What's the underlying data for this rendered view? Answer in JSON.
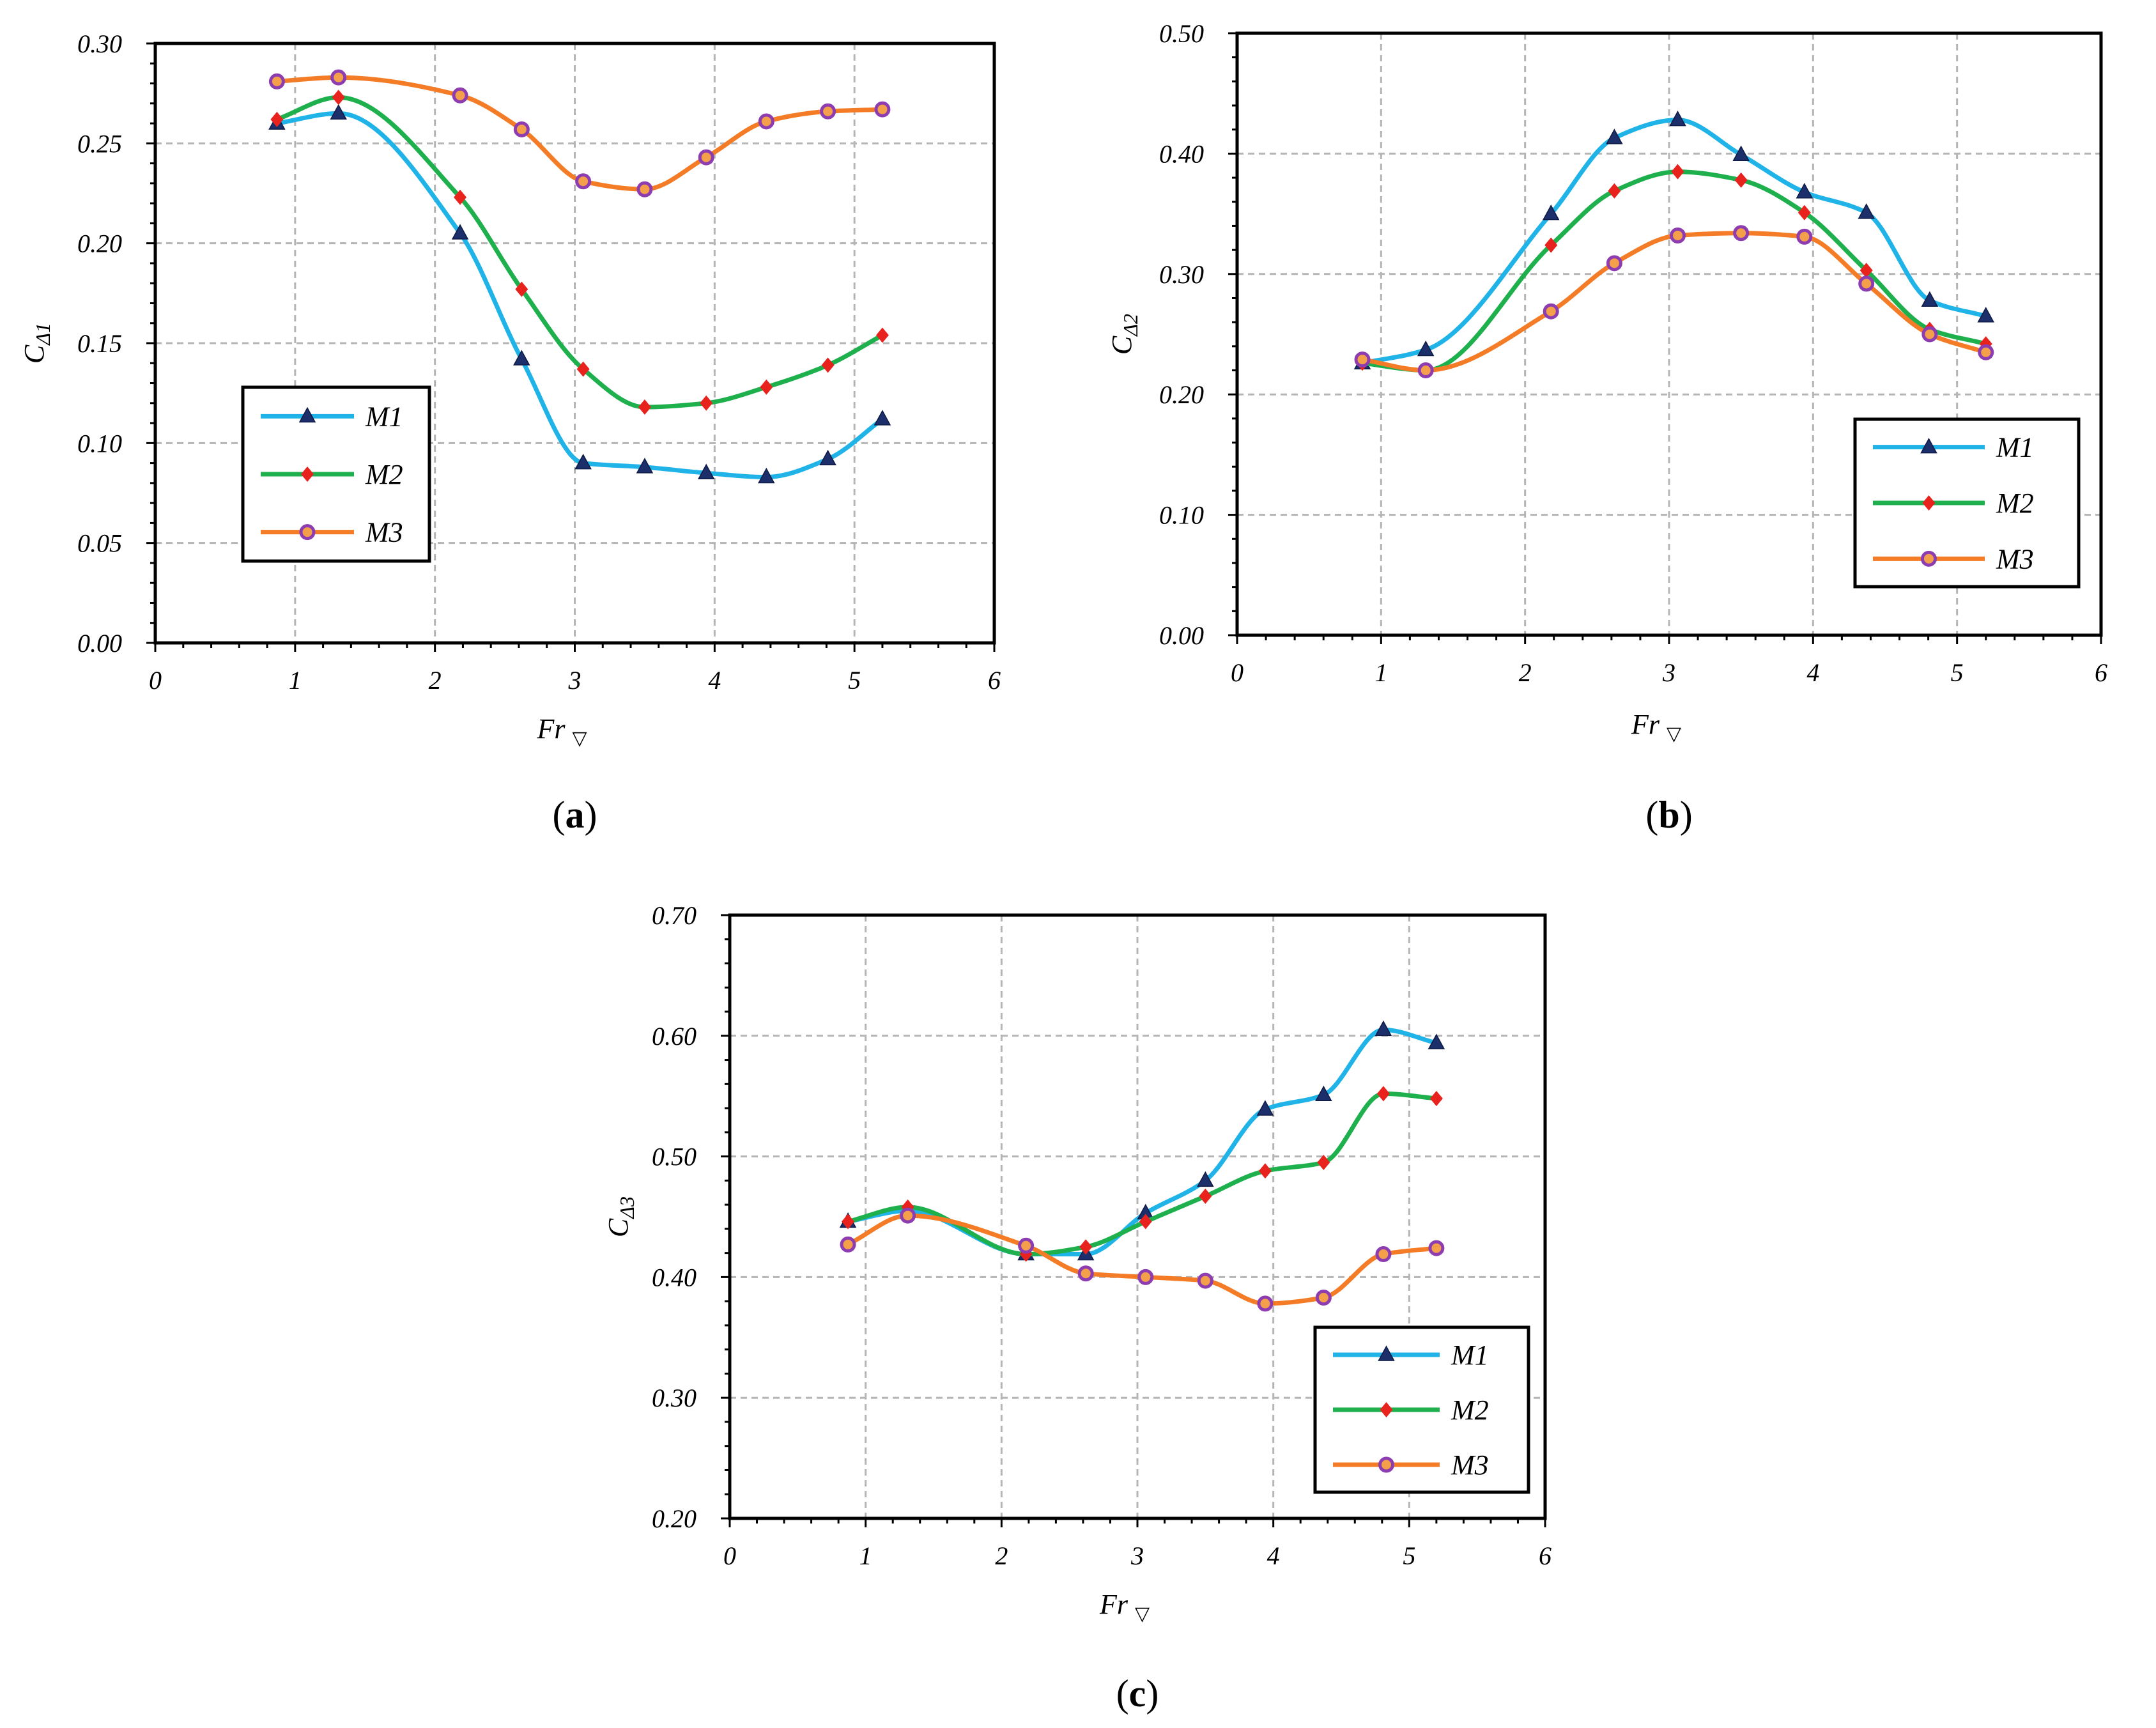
{
  "chart_data": [
    {
      "type": "line",
      "caption": {
        "open": "(",
        "letter": "a",
        "close": ")"
      },
      "ylabel": {
        "main": "C",
        "sub": "Δ1"
      },
      "xlabel": {
        "main": "Fr",
        "sub": "▽"
      },
      "xlim": [
        0,
        6
      ],
      "ylim": [
        0,
        0.3
      ],
      "xticks": [
        "0",
        "1",
        "2",
        "3",
        "4",
        "5",
        "6"
      ],
      "yticks": [
        "0.00",
        "0.05",
        "0.10",
        "0.15",
        "0.20",
        "0.25",
        "0.30"
      ],
      "legend_position": "bottom-left",
      "x": [
        0.87,
        1.31,
        2.18,
        2.62,
        3.06,
        3.5,
        3.94,
        4.37,
        4.81,
        5.2
      ],
      "series": [
        {
          "name": "M1",
          "color": "#1fb3e8",
          "marker": "triangle",
          "marker_color": "#1c2f6b",
          "values": [
            0.26,
            0.265,
            0.205,
            0.142,
            0.09,
            0.088,
            0.085,
            0.083,
            0.092,
            0.112
          ]
        },
        {
          "name": "M2",
          "color": "#1fb04e",
          "marker": "diamond",
          "marker_color": "#e8231e",
          "values": [
            0.262,
            0.273,
            0.223,
            0.177,
            0.137,
            0.118,
            0.12,
            0.128,
            0.139,
            0.154
          ]
        },
        {
          "name": "M3",
          "color": "#f47c26",
          "marker": "circle",
          "marker_color": "#8e3db1",
          "values": [
            0.281,
            0.283,
            0.274,
            0.257,
            0.231,
            0.227,
            0.243,
            0.261,
            0.266,
            0.267
          ]
        }
      ]
    },
    {
      "type": "line",
      "caption": {
        "open": "(",
        "letter": "b",
        "close": ")"
      },
      "ylabel": {
        "main": "C",
        "sub": "Δ2"
      },
      "xlabel": {
        "main": "Fr",
        "sub": "▽"
      },
      "xlim": [
        0,
        6
      ],
      "ylim": [
        0,
        0.5
      ],
      "xticks": [
        "0",
        "1",
        "2",
        "3",
        "4",
        "5",
        "6"
      ],
      "yticks": [
        "0.00",
        "0.10",
        "0.20",
        "0.30",
        "0.40",
        "0.50"
      ],
      "legend_position": "bottom-right",
      "x": [
        0.87,
        1.31,
        2.18,
        2.62,
        3.06,
        3.5,
        3.94,
        4.37,
        4.81,
        5.2
      ],
      "series": [
        {
          "name": "M1",
          "color": "#1fb3e8",
          "marker": "triangle",
          "marker_color": "#1c2f6b",
          "values": [
            0.226,
            0.237,
            0.35,
            0.413,
            0.428,
            0.399,
            0.368,
            0.351,
            0.278,
            0.265
          ]
        },
        {
          "name": "M2",
          "color": "#1fb04e",
          "marker": "diamond",
          "marker_color": "#e8231e",
          "values": [
            0.226,
            0.22,
            0.324,
            0.369,
            0.385,
            0.378,
            0.351,
            0.303,
            0.254,
            0.242
          ]
        },
        {
          "name": "M3",
          "color": "#f47c26",
          "marker": "circle",
          "marker_color": "#8e3db1",
          "values": [
            0.229,
            0.22,
            0.269,
            0.309,
            0.332,
            0.334,
            0.331,
            0.292,
            0.25,
            0.235
          ]
        }
      ]
    },
    {
      "type": "line",
      "caption": {
        "open": "(",
        "letter": "c",
        "close": ")"
      },
      "ylabel": {
        "main": "C",
        "sub": "Δ3"
      },
      "xlabel": {
        "main": "Fr",
        "sub": "▽"
      },
      "xlim": [
        0,
        6
      ],
      "ylim": [
        0.2,
        0.7
      ],
      "xticks": [
        "0",
        "1",
        "2",
        "3",
        "4",
        "5",
        "6"
      ],
      "yticks": [
        "0.20",
        "0.30",
        "0.40",
        "0.50",
        "0.60",
        "0.70"
      ],
      "legend_position": "bottom-right",
      "x": [
        0.87,
        1.31,
        2.18,
        2.62,
        3.06,
        3.5,
        3.94,
        4.37,
        4.81,
        5.2
      ],
      "series": [
        {
          "name": "M1",
          "color": "#1fb3e8",
          "marker": "triangle",
          "marker_color": "#1c2f6b",
          "values": [
            0.446,
            0.455,
            0.419,
            0.419,
            0.453,
            0.48,
            0.539,
            0.551,
            0.605,
            0.594
          ]
        },
        {
          "name": "M2",
          "color": "#1fb04e",
          "marker": "diamond",
          "marker_color": "#e8231e",
          "values": [
            0.446,
            0.458,
            0.419,
            0.425,
            0.446,
            0.467,
            0.488,
            0.495,
            0.552,
            0.548
          ]
        },
        {
          "name": "M3",
          "color": "#f47c26",
          "marker": "circle",
          "marker_color": "#8e3db1",
          "values": [
            0.427,
            0.451,
            0.426,
            0.403,
            0.4,
            0.397,
            0.378,
            0.383,
            0.419,
            0.424
          ]
        }
      ]
    }
  ]
}
